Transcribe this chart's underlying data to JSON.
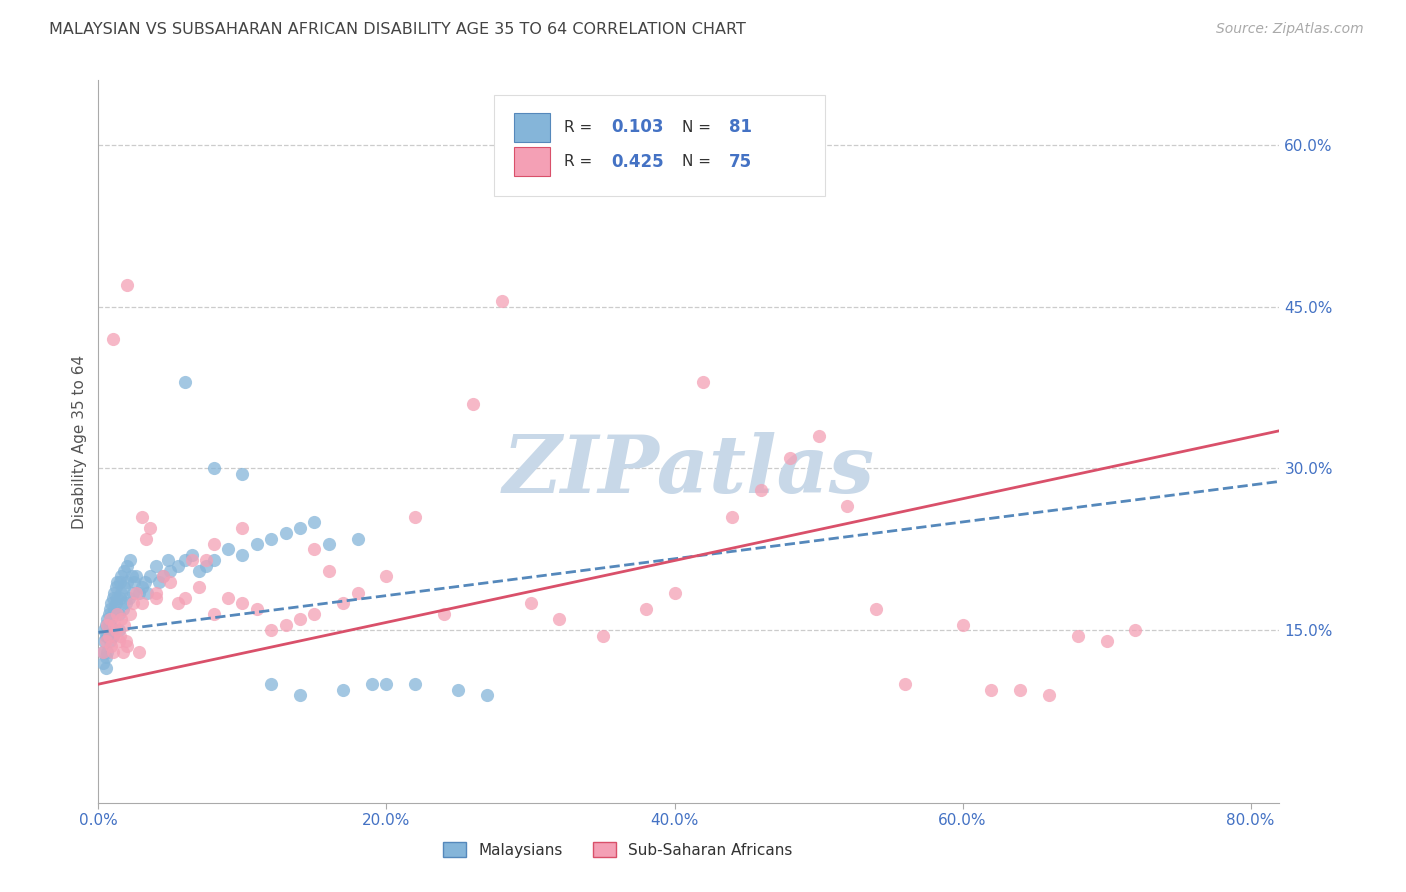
{
  "title": "MALAYSIAN VS SUBSAHARAN AFRICAN DISABILITY AGE 35 TO 64 CORRELATION CHART",
  "source": "Source: ZipAtlas.com",
  "ylabel": "Disability Age 35 to 64",
  "x_tick_positions": [
    0.0,
    0.2,
    0.4,
    0.6,
    0.8
  ],
  "x_tick_labels": [
    "0.0%",
    "20.0%",
    "40.0%",
    "60.0%",
    "80.0%"
  ],
  "y_ticks_right": [
    0.15,
    0.3,
    0.45,
    0.6
  ],
  "y_tick_labels_right": [
    "15.0%",
    "30.0%",
    "45.0%",
    "60.0%"
  ],
  "xlim": [
    0.0,
    0.82
  ],
  "ylim": [
    -0.01,
    0.66
  ],
  "watermark": "ZIPatlas",
  "watermark_color": "#c8d8e8",
  "bg_color": "#ffffff",
  "grid_color": "#cccccc",
  "legend_R1": "0.103",
  "legend_N1": "81",
  "legend_R2": "0.425",
  "legend_N2": "75",
  "color_malaysian": "#85b5d9",
  "color_subsaharan": "#f4a0b5",
  "color_trend_malaysian": "#5588bb",
  "color_trend_subsaharan": "#d9506a",
  "title_color": "#444444",
  "axis_label_color": "#4472c4",
  "mal_trend_start_y": 0.148,
  "mal_trend_end_y": 0.288,
  "sub_trend_start_y": 0.1,
  "sub_trend_end_y": 0.335,
  "malaysian_x": [
    0.003,
    0.003,
    0.004,
    0.004,
    0.005,
    0.005,
    0.005,
    0.005,
    0.006,
    0.006,
    0.006,
    0.007,
    0.007,
    0.008,
    0.008,
    0.008,
    0.009,
    0.009,
    0.01,
    0.01,
    0.01,
    0.011,
    0.011,
    0.012,
    0.012,
    0.013,
    0.013,
    0.014,
    0.014,
    0.015,
    0.015,
    0.016,
    0.016,
    0.017,
    0.018,
    0.018,
    0.019,
    0.02,
    0.02,
    0.021,
    0.022,
    0.023,
    0.024,
    0.025,
    0.026,
    0.028,
    0.03,
    0.032,
    0.034,
    0.036,
    0.04,
    0.042,
    0.045,
    0.048,
    0.05,
    0.055,
    0.06,
    0.065,
    0.07,
    0.075,
    0.08,
    0.09,
    0.1,
    0.11,
    0.12,
    0.13,
    0.14,
    0.15,
    0.16,
    0.18,
    0.19,
    0.06,
    0.08,
    0.1,
    0.12,
    0.14,
    0.17,
    0.2,
    0.22,
    0.25,
    0.27
  ],
  "malaysian_y": [
    0.13,
    0.12,
    0.14,
    0.15,
    0.155,
    0.145,
    0.125,
    0.115,
    0.16,
    0.145,
    0.13,
    0.165,
    0.15,
    0.17,
    0.155,
    0.14,
    0.175,
    0.16,
    0.18,
    0.165,
    0.145,
    0.185,
    0.17,
    0.19,
    0.175,
    0.195,
    0.18,
    0.165,
    0.15,
    0.195,
    0.18,
    0.2,
    0.185,
    0.17,
    0.205,
    0.19,
    0.175,
    0.21,
    0.195,
    0.18,
    0.215,
    0.2,
    0.185,
    0.195,
    0.2,
    0.185,
    0.19,
    0.195,
    0.185,
    0.2,
    0.21,
    0.195,
    0.2,
    0.215,
    0.205,
    0.21,
    0.215,
    0.22,
    0.205,
    0.21,
    0.215,
    0.225,
    0.22,
    0.23,
    0.235,
    0.24,
    0.245,
    0.25,
    0.23,
    0.235,
    0.1,
    0.38,
    0.3,
    0.295,
    0.1,
    0.09,
    0.095,
    0.1,
    0.1,
    0.095,
    0.09
  ],
  "subsaharan_x": [
    0.003,
    0.005,
    0.006,
    0.007,
    0.008,
    0.009,
    0.01,
    0.011,
    0.012,
    0.013,
    0.014,
    0.015,
    0.016,
    0.017,
    0.018,
    0.019,
    0.02,
    0.022,
    0.024,
    0.026,
    0.028,
    0.03,
    0.033,
    0.036,
    0.04,
    0.045,
    0.05,
    0.055,
    0.06,
    0.065,
    0.07,
    0.075,
    0.08,
    0.09,
    0.1,
    0.11,
    0.12,
    0.13,
    0.14,
    0.15,
    0.16,
    0.17,
    0.18,
    0.2,
    0.22,
    0.24,
    0.26,
    0.28,
    0.3,
    0.32,
    0.35,
    0.38,
    0.4,
    0.42,
    0.44,
    0.46,
    0.48,
    0.5,
    0.52,
    0.54,
    0.56,
    0.6,
    0.62,
    0.64,
    0.66,
    0.68,
    0.7,
    0.72,
    0.01,
    0.02,
    0.03,
    0.04,
    0.08,
    0.1,
    0.15
  ],
  "subsaharan_y": [
    0.13,
    0.14,
    0.155,
    0.145,
    0.16,
    0.135,
    0.13,
    0.155,
    0.15,
    0.165,
    0.14,
    0.145,
    0.16,
    0.13,
    0.155,
    0.14,
    0.135,
    0.165,
    0.175,
    0.185,
    0.13,
    0.255,
    0.235,
    0.245,
    0.185,
    0.2,
    0.195,
    0.175,
    0.18,
    0.215,
    0.19,
    0.215,
    0.165,
    0.18,
    0.175,
    0.17,
    0.15,
    0.155,
    0.16,
    0.165,
    0.205,
    0.175,
    0.185,
    0.2,
    0.255,
    0.165,
    0.36,
    0.455,
    0.175,
    0.16,
    0.145,
    0.17,
    0.185,
    0.38,
    0.255,
    0.28,
    0.31,
    0.33,
    0.265,
    0.17,
    0.1,
    0.155,
    0.095,
    0.095,
    0.09,
    0.145,
    0.14,
    0.15,
    0.42,
    0.47,
    0.175,
    0.18,
    0.23,
    0.245,
    0.225
  ]
}
